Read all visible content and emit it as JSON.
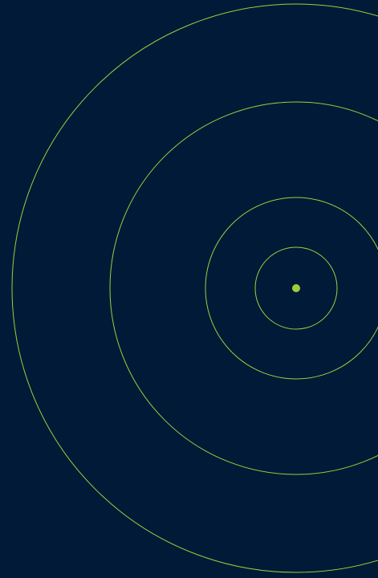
{
  "colors": {
    "background": "#011a38",
    "ring_stroke": "#9fce3a",
    "center_dot": "#9fce3a"
  },
  "graphic": {
    "icon": "concentric-rings-target-icon",
    "ring_count": 4
  }
}
